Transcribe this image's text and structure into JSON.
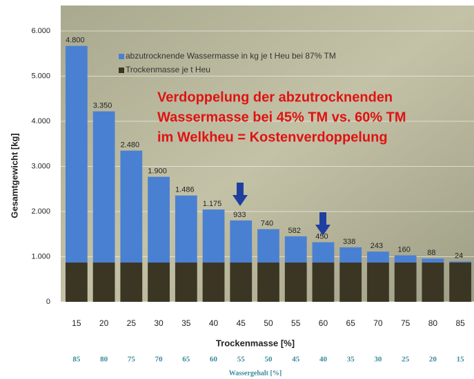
{
  "chart_data": {
    "type": "stacked_bar",
    "annotation_lines": [
      "Verdoppelung der abzutrocknenden",
      "Wassermasse bei 45% TM vs. 60% TM",
      "im Welkheu = Kostenverdoppelung"
    ],
    "y_label": "Gesamtgewicht [kg]",
    "x_label": "Trockenmasse [%]",
    "x2_label": "Wassergehalt [%]",
    "categories": [
      "15",
      "20",
      "25",
      "30",
      "35",
      "40",
      "45",
      "50",
      "55",
      "60",
      "65",
      "70",
      "75",
      "80",
      "85"
    ],
    "x2_categories": [
      "85",
      "80",
      "75",
      "70",
      "65",
      "60",
      "55",
      "50",
      "45",
      "40",
      "35",
      "30",
      "25",
      "20",
      "15"
    ],
    "series": [
      {
        "name": "Trockenmasse je t Heu",
        "color": "#3b3524",
        "values": [
          870,
          870,
          870,
          870,
          870,
          870,
          870,
          870,
          870,
          870,
          870,
          870,
          870,
          870,
          870
        ]
      },
      {
        "name": "abzutrocknende Wassermasse in kg je t Heu bei 87% TM",
        "color": "#4a80d2",
        "values": [
          4800,
          3350,
          2480,
          1900,
          1486,
          1175,
          933,
          740,
          582,
          450,
          338,
          243,
          160,
          88,
          24
        ],
        "value_labels": [
          "4.800",
          "3.350",
          "2.480",
          "1.900",
          "1.486",
          "1.175",
          "933",
          "740",
          "582",
          "450",
          "338",
          "243",
          "160",
          "88",
          "24"
        ]
      }
    ],
    "ylim": [
      0,
      6000
    ],
    "yticks": [
      0,
      {
        "value": 1000,
        "label": "1.000"
      },
      {
        "value": 2000,
        "label": "2.000"
      },
      {
        "value": 3000,
        "label": "3.000"
      },
      {
        "value": 4000,
        "label": "4.000"
      },
      {
        "value": 5000,
        "label": "5.000"
      },
      {
        "value": 6000,
        "label": "6.000"
      }
    ],
    "grid": true
  }
}
